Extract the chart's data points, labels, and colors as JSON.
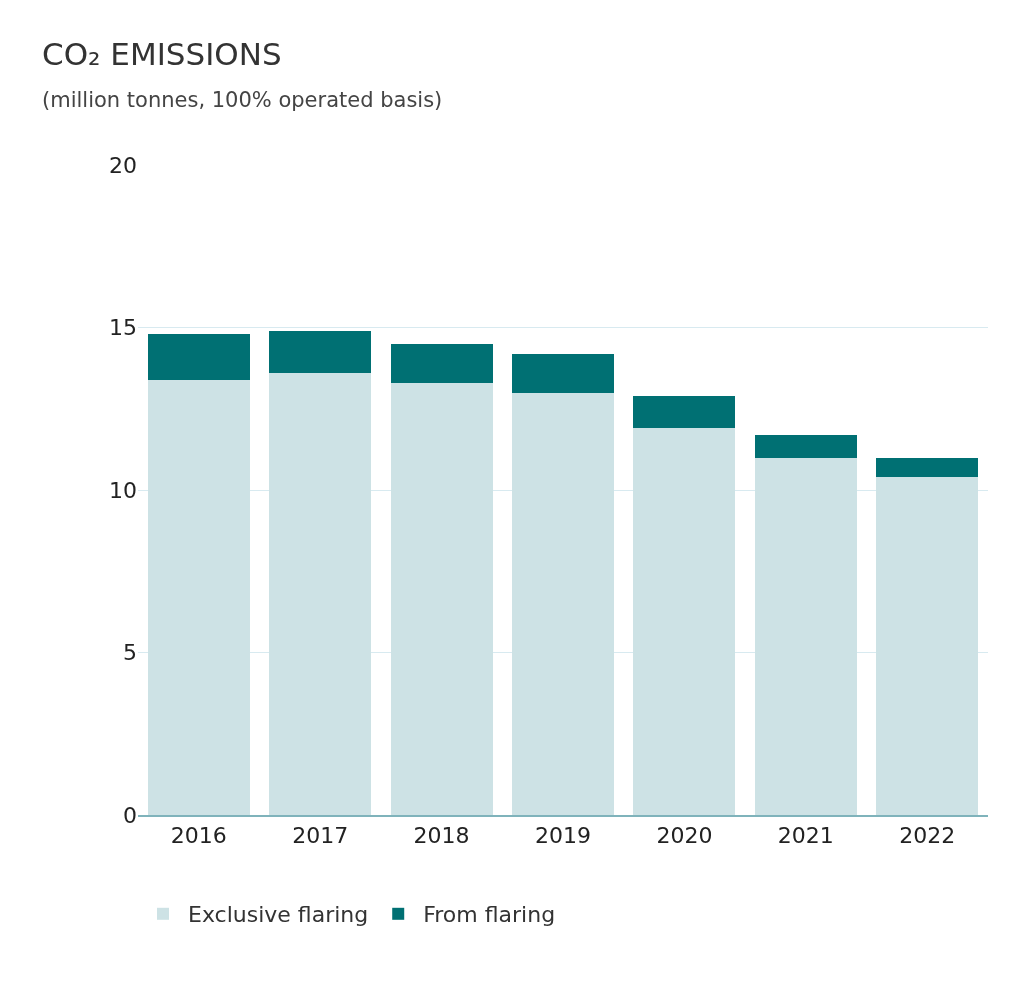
{
  "chart_data": {
    "type": "bar",
    "title": "CO₂ EMISSIONS",
    "subtitle": "(million tonnes, 100% operated basis)",
    "categories": [
      "2016",
      "2017",
      "2018",
      "2019",
      "2020",
      "2021",
      "2022"
    ],
    "stacked": true,
    "series": [
      {
        "name": "Exclusive flaring",
        "color": "#cde2e5",
        "values": [
          13.4,
          13.6,
          13.3,
          13.0,
          11.9,
          11.0,
          10.4
        ]
      },
      {
        "name": "From flaring",
        "color": "#007073",
        "values": [
          1.4,
          1.3,
          1.2,
          1.2,
          1.0,
          0.7,
          0.6
        ]
      }
    ],
    "ylim": [
      0,
      20
    ],
    "yticks": [
      0,
      5,
      10,
      15,
      20
    ],
    "grid": "y",
    "legend": "bottom left"
  }
}
